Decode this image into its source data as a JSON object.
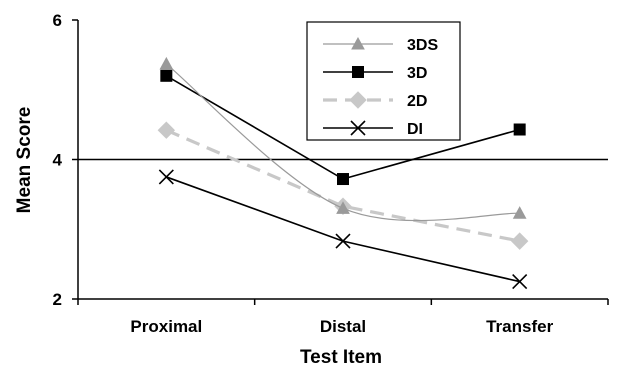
{
  "chart_data": {
    "type": "line",
    "categories": [
      "Proximal",
      "Distal",
      "Transfer"
    ],
    "xlabel": "Test Item",
    "ylabel": "Mean Score",
    "ylim": [
      2,
      6
    ],
    "yticks": [
      "2",
      "4",
      "6"
    ],
    "reference_line": 4,
    "grid": false,
    "legend_placement": "top-center",
    "series": [
      {
        "name": "3DS",
        "values": [
          5.37,
          3.3,
          3.23
        ],
        "color": "#9a9a9a",
        "marker": "triangle",
        "dash": "solid",
        "smooth": true
      },
      {
        "name": "3D",
        "values": [
          5.2,
          3.72,
          4.43
        ],
        "color": "#000000",
        "marker": "square",
        "dash": "solid",
        "smooth": false
      },
      {
        "name": "2D",
        "values": [
          4.42,
          3.33,
          2.83
        ],
        "color": "#c8c8c8",
        "marker": "diamond",
        "dash": "dashed",
        "smooth": false
      },
      {
        "name": "DI",
        "values": [
          3.75,
          2.83,
          2.25
        ],
        "color": "#000000",
        "marker": "x",
        "dash": "solid",
        "smooth": false
      }
    ]
  }
}
